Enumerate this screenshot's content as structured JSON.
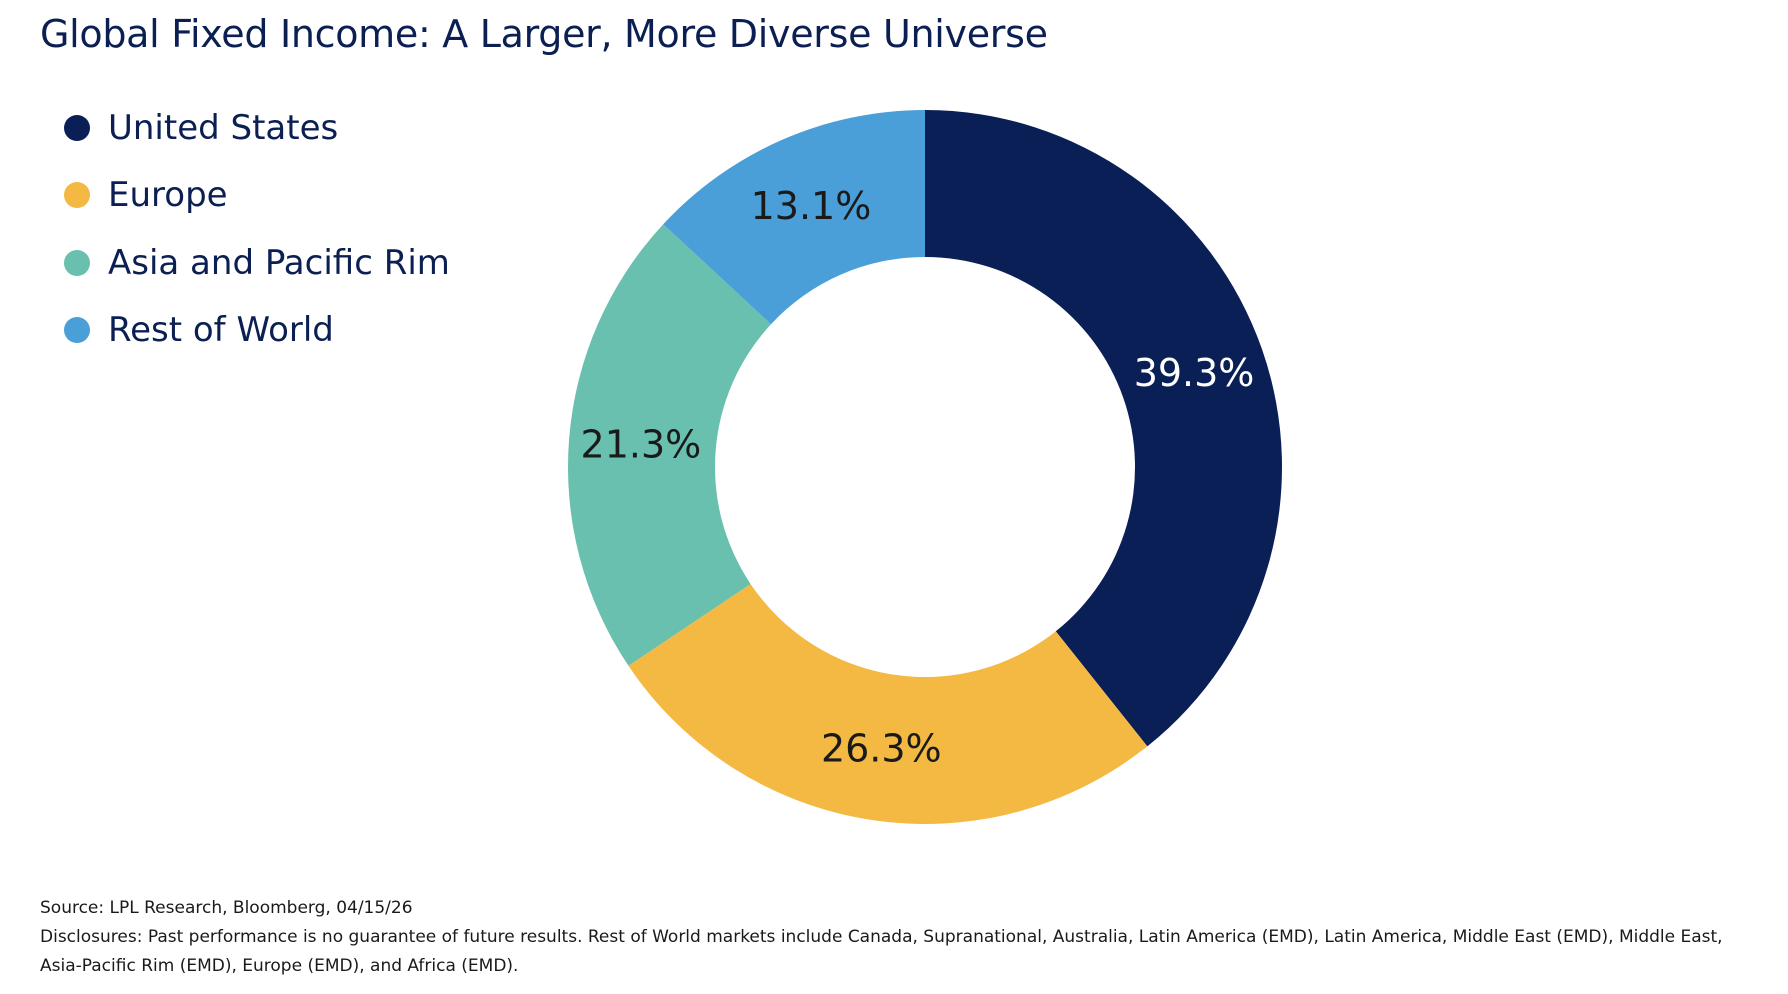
{
  "colors": {
    "united_states": "#0b1f57",
    "europe": "#f3b942",
    "asia_pacific": "#69c0ae",
    "rest_of_world": "#4a9fd9",
    "title": "#0b1f52"
  },
  "chart_data": {
    "type": "pie",
    "variant": "donut",
    "title": "Global Fixed Income: A Larger, More Diverse Universe",
    "legend_position": "top-left",
    "slices": [
      {
        "label": "United States",
        "value": 39.3,
        "display": "39.3%",
        "color": "#0b1f57",
        "text_color": "#ffffff"
      },
      {
        "label": "Europe",
        "value": 26.3,
        "display": "26.3%",
        "color": "#f3b942",
        "text_color": "#1a1a1a"
      },
      {
        "label": "Asia and Pacific Rim",
        "value": 21.3,
        "display": "21.3%",
        "color": "#69c0ae",
        "text_color": "#1a1a1a"
      },
      {
        "label": "Rest of World",
        "value": 13.1,
        "display": "13.1%",
        "color": "#4a9fd9",
        "text_color": "#1a1a1a"
      }
    ]
  },
  "footer": {
    "source": "Source: LPL Research, Bloomberg, 04/15/26",
    "disclosures": "Disclosures: Past performance is no guarantee of future results. Rest of World markets include Canada, Supranational, Australia, Latin America (EMD), Latin America, Middle East (EMD), Middle East, Asia-Pacific Rim (EMD), Europe (EMD), and Africa (EMD)."
  }
}
